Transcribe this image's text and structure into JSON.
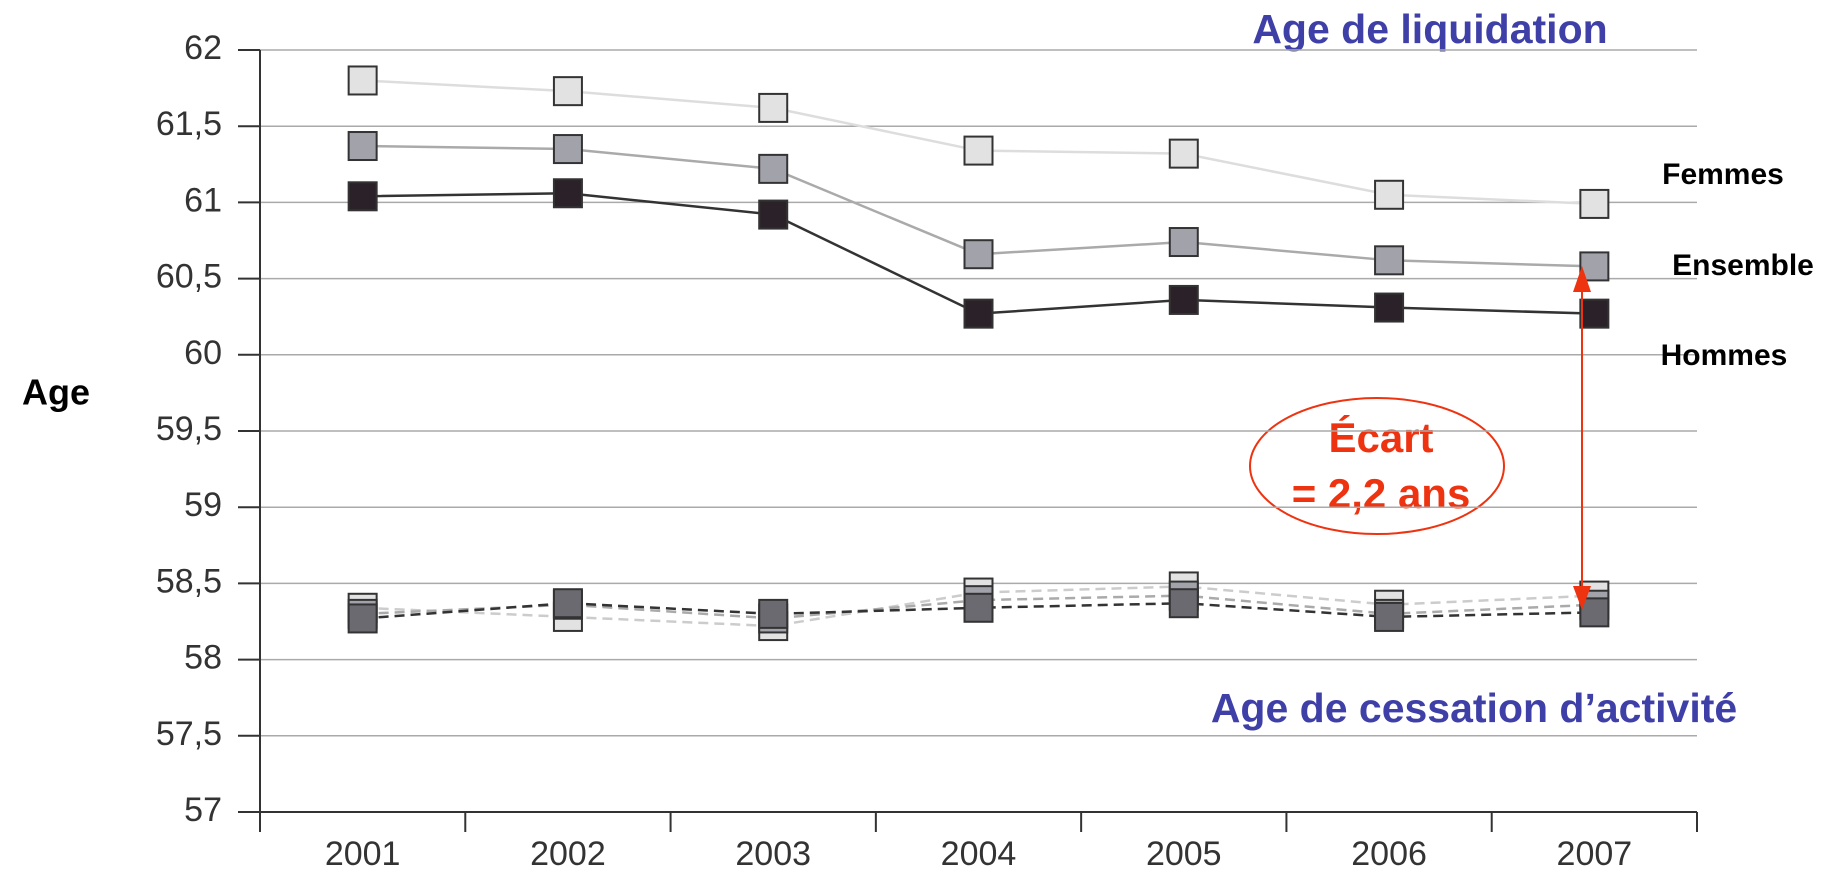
{
  "chart_data": {
    "type": "line",
    "title": "Age de liquidation",
    "subtitle": "Age de cessation d’activité",
    "y_label": "Age",
    "annotations": [
      "Écart",
      "= 2,2 ans"
    ],
    "categories": [
      "2001",
      "2002",
      "2003",
      "2004",
      "2005",
      "2006",
      "2007"
    ],
    "series": [
      {
        "name": "Femmes",
        "color": "#e2e2e2",
        "line_color": "#dddddd",
        "dashed": false,
        "values": [
          61.8,
          61.73,
          61.62,
          61.34,
          61.32,
          61.05,
          60.99
        ]
      },
      {
        "name": "Ensemble",
        "color": "#a2a2aa",
        "line_color": "#aaaaaa",
        "dashed": false,
        "values": [
          61.37,
          61.35,
          61.22,
          60.66,
          60.74,
          60.62,
          60.58
        ]
      },
      {
        "name": "Hommes",
        "color": "#2a2228",
        "line_color": "#333333",
        "dashed": false,
        "values": [
          61.04,
          61.06,
          60.92,
          60.27,
          60.36,
          60.31,
          60.27
        ]
      },
      {
        "color": "#e2e2e2",
        "line_color": "#cccccc",
        "dashed": true,
        "values": [
          58.34,
          58.28,
          58.22,
          58.44,
          58.48,
          58.36,
          58.42
        ]
      },
      {
        "color": "#a2a2aa",
        "line_color": "#aaaaaa",
        "dashed": true,
        "values": [
          58.3,
          58.36,
          58.27,
          58.39,
          58.42,
          58.3,
          58.36
        ]
      },
      {
        "color": "#6a6a70",
        "line_color": "#333333",
        "dashed": true,
        "values": [
          58.27,
          58.37,
          58.3,
          58.34,
          58.37,
          58.28,
          58.31
        ]
      }
    ],
    "ylim": [
      57,
      62
    ],
    "yticks": [
      57,
      {
        "value": 57.5,
        "label": "57,5"
      },
      58,
      {
        "value": 58.5,
        "label": "58,5"
      },
      59,
      {
        "value": 59.5,
        "label": "59,5"
      },
      60,
      {
        "value": 60.5,
        "label": "60,5"
      },
      61,
      {
        "value": 61.5,
        "label": "61,5"
      },
      62
    ],
    "grid": true
  }
}
